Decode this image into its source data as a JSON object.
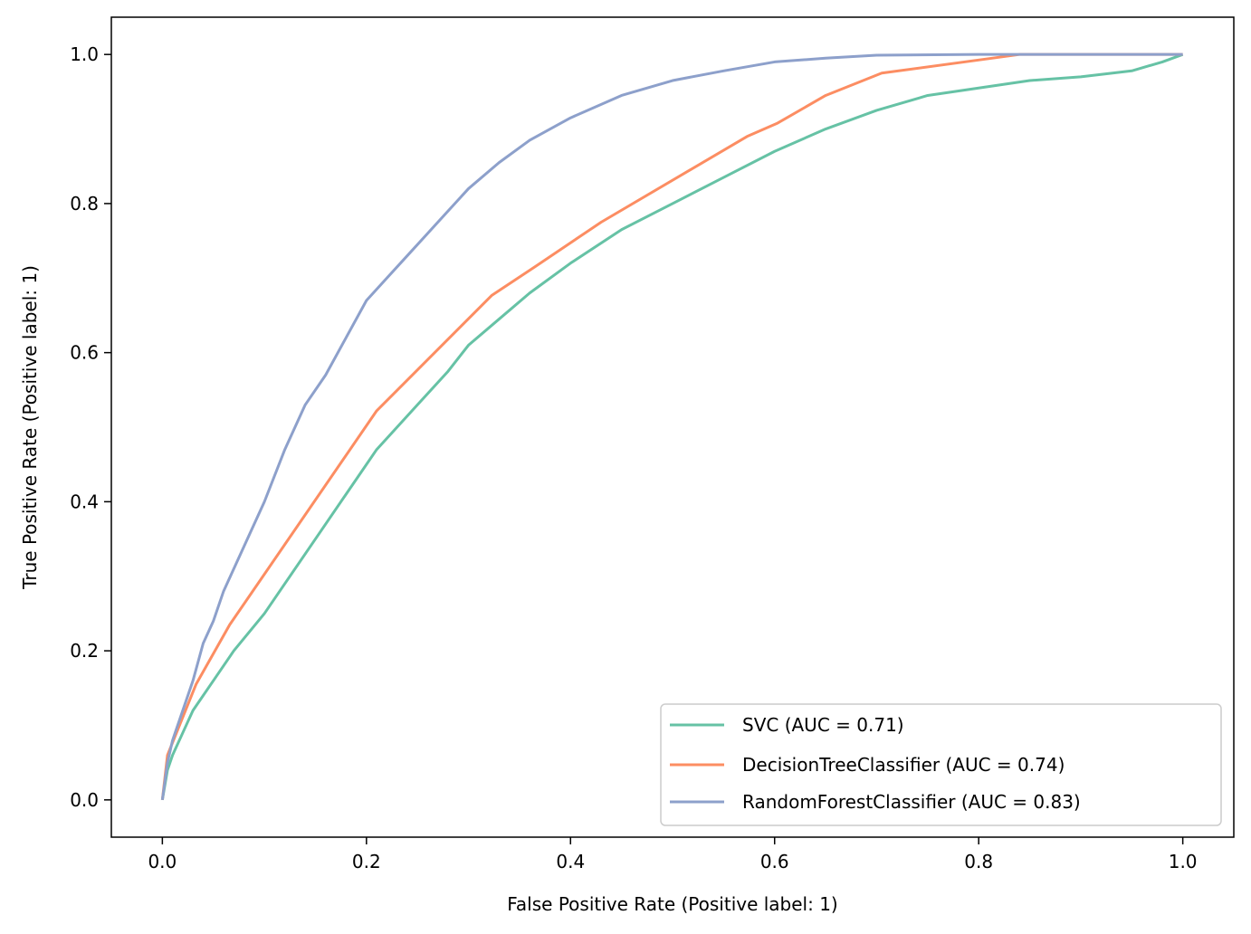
{
  "chart_data": {
    "type": "line",
    "title": "",
    "xlabel": "False Positive Rate (Positive label: 1)",
    "ylabel": "True Positive Rate (Positive label: 1)",
    "xlim": [
      -0.05,
      1.05
    ],
    "ylim": [
      -0.05,
      1.05
    ],
    "xticks": [
      0.0,
      0.2,
      0.4,
      0.6,
      0.8,
      1.0
    ],
    "yticks": [
      0.0,
      0.2,
      0.4,
      0.6,
      0.8,
      1.0
    ],
    "xtick_labels": [
      "0.0",
      "0.2",
      "0.4",
      "0.6",
      "0.8",
      "1.0"
    ],
    "ytick_labels": [
      "0.0",
      "0.2",
      "0.4",
      "0.6",
      "0.8",
      "1.0"
    ],
    "grid": false,
    "legend_position": "bottom-right",
    "series": [
      {
        "name": "SVC (AUC = 0.71)",
        "color": "#66c2a5",
        "points": [
          [
            0,
            0
          ],
          [
            0.005,
            0.04
          ],
          [
            0.01,
            0.06
          ],
          [
            0.02,
            0.09
          ],
          [
            0.03,
            0.12
          ],
          [
            0.05,
            0.16
          ],
          [
            0.07,
            0.2
          ],
          [
            0.1,
            0.25
          ],
          [
            0.12,
            0.29
          ],
          [
            0.15,
            0.35
          ],
          [
            0.18,
            0.41
          ],
          [
            0.21,
            0.47
          ],
          [
            0.25,
            0.53
          ],
          [
            0.28,
            0.575
          ],
          [
            0.3,
            0.61
          ],
          [
            0.33,
            0.645
          ],
          [
            0.36,
            0.68
          ],
          [
            0.4,
            0.72
          ],
          [
            0.45,
            0.765
          ],
          [
            0.5,
            0.8
          ],
          [
            0.55,
            0.835
          ],
          [
            0.6,
            0.87
          ],
          [
            0.65,
            0.9
          ],
          [
            0.7,
            0.925
          ],
          [
            0.75,
            0.945
          ],
          [
            0.8,
            0.955
          ],
          [
            0.85,
            0.965
          ],
          [
            0.9,
            0.97
          ],
          [
            0.95,
            0.978
          ],
          [
            0.98,
            0.99
          ],
          [
            1.0,
            1.0
          ]
        ]
      },
      {
        "name": "DecisionTreeClassifier (AUC = 0.74)",
        "color": "#fc8d62",
        "points": [
          [
            0,
            0
          ],
          [
            0.005,
            0.06
          ],
          [
            0.033,
            0.155
          ],
          [
            0.066,
            0.235
          ],
          [
            0.21,
            0.522
          ],
          [
            0.323,
            0.677
          ],
          [
            0.365,
            0.715
          ],
          [
            0.43,
            0.775
          ],
          [
            0.573,
            0.89
          ],
          [
            0.603,
            0.908
          ],
          [
            0.65,
            0.945
          ],
          [
            0.705,
            0.975
          ],
          [
            0.84,
            1.0
          ],
          [
            1.0,
            1.0
          ]
        ]
      },
      {
        "name": "RandomForestClassifier (AUC = 0.83)",
        "color": "#8da0cb",
        "points": [
          [
            0,
            0
          ],
          [
            0.005,
            0.05
          ],
          [
            0.01,
            0.08
          ],
          [
            0.02,
            0.12
          ],
          [
            0.03,
            0.16
          ],
          [
            0.04,
            0.21
          ],
          [
            0.05,
            0.24
          ],
          [
            0.06,
            0.28
          ],
          [
            0.08,
            0.34
          ],
          [
            0.1,
            0.4
          ],
          [
            0.12,
            0.47
          ],
          [
            0.14,
            0.53
          ],
          [
            0.16,
            0.57
          ],
          [
            0.18,
            0.62
          ],
          [
            0.2,
            0.67
          ],
          [
            0.22,
            0.7
          ],
          [
            0.24,
            0.73
          ],
          [
            0.26,
            0.76
          ],
          [
            0.28,
            0.79
          ],
          [
            0.3,
            0.82
          ],
          [
            0.33,
            0.855
          ],
          [
            0.36,
            0.885
          ],
          [
            0.4,
            0.915
          ],
          [
            0.45,
            0.945
          ],
          [
            0.5,
            0.965
          ],
          [
            0.55,
            0.978
          ],
          [
            0.6,
            0.99
          ],
          [
            0.65,
            0.995
          ],
          [
            0.7,
            0.999
          ],
          [
            0.8,
            1.0
          ],
          [
            1.0,
            1.0
          ]
        ]
      }
    ]
  }
}
